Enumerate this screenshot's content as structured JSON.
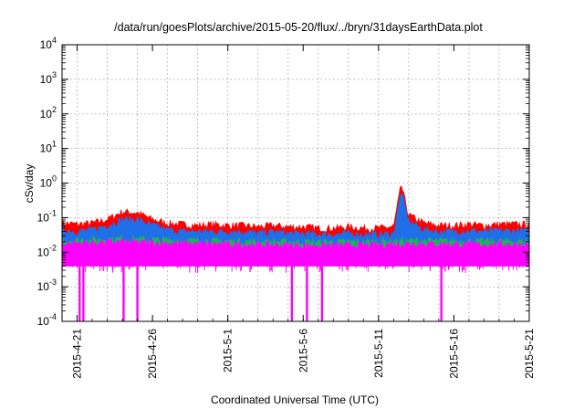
{
  "chart_data": {
    "type": "area",
    "title": "/data/run/goesPlots/archive/2015-05-20/flux/../bryn/31daysEarthData.plot",
    "xlabel": "Coordinated Universal Time (UTC)",
    "ylabel": "cSv/day",
    "x_type": "date",
    "xlim": [
      "2015-04-20",
      "2015-05-21"
    ],
    "yscale": "log",
    "ylim": [
      0.0001,
      10000
    ],
    "grid": true,
    "legend": "none",
    "x_ticks": [
      "2015-4-21",
      "2015-4-26",
      "2015-5-1",
      "2015-5-6",
      "2015-5-11",
      "2015-5-16",
      "2015-5-21"
    ],
    "x_tick_dates": [
      "2015-04-21",
      "2015-04-26",
      "2015-05-01",
      "2015-05-06",
      "2015-05-11",
      "2015-05-16",
      "2015-05-21"
    ],
    "y_ticks": [
      {
        "base": "10",
        "exp": "-4"
      },
      {
        "base": "10",
        "exp": "-3"
      },
      {
        "base": "10",
        "exp": "-2"
      },
      {
        "base": "10",
        "exp": "-1"
      },
      {
        "base": "10",
        "exp": "0"
      },
      {
        "base": "10",
        "exp": "1"
      },
      {
        "base": "10",
        "exp": "2"
      },
      {
        "base": "10",
        "exp": "3"
      },
      {
        "base": "10",
        "exp": "4"
      }
    ],
    "series": [
      {
        "color": "#ff0000",
        "x": [
          "2015-04-20",
          "2015-04-21",
          "2015-04-22",
          "2015-04-23",
          "2015-04-24",
          "2015-04-25",
          "2015-04-26",
          "2015-04-27",
          "2015-04-28",
          "2015-04-29",
          "2015-04-30",
          "2015-05-01",
          "2015-05-02",
          "2015-05-03",
          "2015-05-04",
          "2015-05-05",
          "2015-05-06",
          "2015-05-07",
          "2015-05-08",
          "2015-05-09",
          "2015-05-10",
          "2015-05-11",
          "2015-05-12",
          "2015-05-12T12:00",
          "2015-05-13",
          "2015-05-14",
          "2015-05-15",
          "2015-05-16",
          "2015-05-17",
          "2015-05-18",
          "2015-05-19",
          "2015-05-20",
          "2015-05-21"
        ],
        "y": [
          0.07,
          0.065,
          0.07,
          0.09,
          0.15,
          0.14,
          0.09,
          0.07,
          0.065,
          0.06,
          0.065,
          0.06,
          0.06,
          0.055,
          0.06,
          0.055,
          0.055,
          0.05,
          0.05,
          0.055,
          0.05,
          0.05,
          0.055,
          0.9,
          0.12,
          0.07,
          0.06,
          0.06,
          0.065,
          0.06,
          0.065,
          0.065,
          0.065
        ]
      },
      {
        "color": "#1e6fe8",
        "x": [
          "2015-04-20",
          "2015-04-21",
          "2015-04-22",
          "2015-04-23",
          "2015-04-24",
          "2015-04-25",
          "2015-04-26",
          "2015-04-27",
          "2015-04-28",
          "2015-04-29",
          "2015-04-30",
          "2015-05-01",
          "2015-05-02",
          "2015-05-03",
          "2015-05-04",
          "2015-05-05",
          "2015-05-06",
          "2015-05-07",
          "2015-05-08",
          "2015-05-09",
          "2015-05-10",
          "2015-05-11",
          "2015-05-12",
          "2015-05-12T12:00",
          "2015-05-13",
          "2015-05-14",
          "2015-05-15",
          "2015-05-16",
          "2015-05-17",
          "2015-05-18",
          "2015-05-19",
          "2015-05-20",
          "2015-05-21"
        ],
        "y": [
          0.045,
          0.04,
          0.045,
          0.06,
          0.09,
          0.09,
          0.06,
          0.045,
          0.04,
          0.04,
          0.04,
          0.04,
          0.04,
          0.035,
          0.04,
          0.035,
          0.035,
          0.033,
          0.033,
          0.035,
          0.033,
          0.033,
          0.035,
          0.6,
          0.08,
          0.045,
          0.04,
          0.04,
          0.042,
          0.04,
          0.042,
          0.042,
          0.042
        ]
      },
      {
        "color": "#20b060",
        "x": [
          "2015-04-20",
          "2015-04-24",
          "2015-04-28",
          "2015-05-02",
          "2015-05-06",
          "2015-05-10",
          "2015-05-13",
          "2015-05-17",
          "2015-05-21"
        ],
        "y": [
          0.022,
          0.025,
          0.022,
          0.021,
          0.02,
          0.02,
          0.022,
          0.021,
          0.021
        ]
      },
      {
        "color": "#ff00ff",
        "x": [
          "2015-04-20",
          "2015-04-24",
          "2015-04-28",
          "2015-05-02",
          "2015-05-06",
          "2015-05-10",
          "2015-05-13",
          "2015-05-17",
          "2015-05-21"
        ],
        "y": [
          0.018,
          0.02,
          0.018,
          0.017,
          0.016,
          0.016,
          0.018,
          0.017,
          0.017
        ],
        "floor": 0.004,
        "dropouts": [
          {
            "x": "2015-04-21T04:00",
            "y": 0.0001
          },
          {
            "x": "2015-04-21T10:00",
            "y": 0.0001
          },
          {
            "x": "2015-04-24T02:00",
            "y": 0.0001
          },
          {
            "x": "2015-04-25T00:00",
            "y": 0.0001
          },
          {
            "x": "2015-05-05T06:00",
            "y": 0.0001
          },
          {
            "x": "2015-05-06T06:00",
            "y": 0.0001
          },
          {
            "x": "2015-05-07T06:00",
            "y": 0.0001
          },
          {
            "x": "2015-05-15T04:00",
            "y": 0.0001
          }
        ]
      }
    ]
  }
}
